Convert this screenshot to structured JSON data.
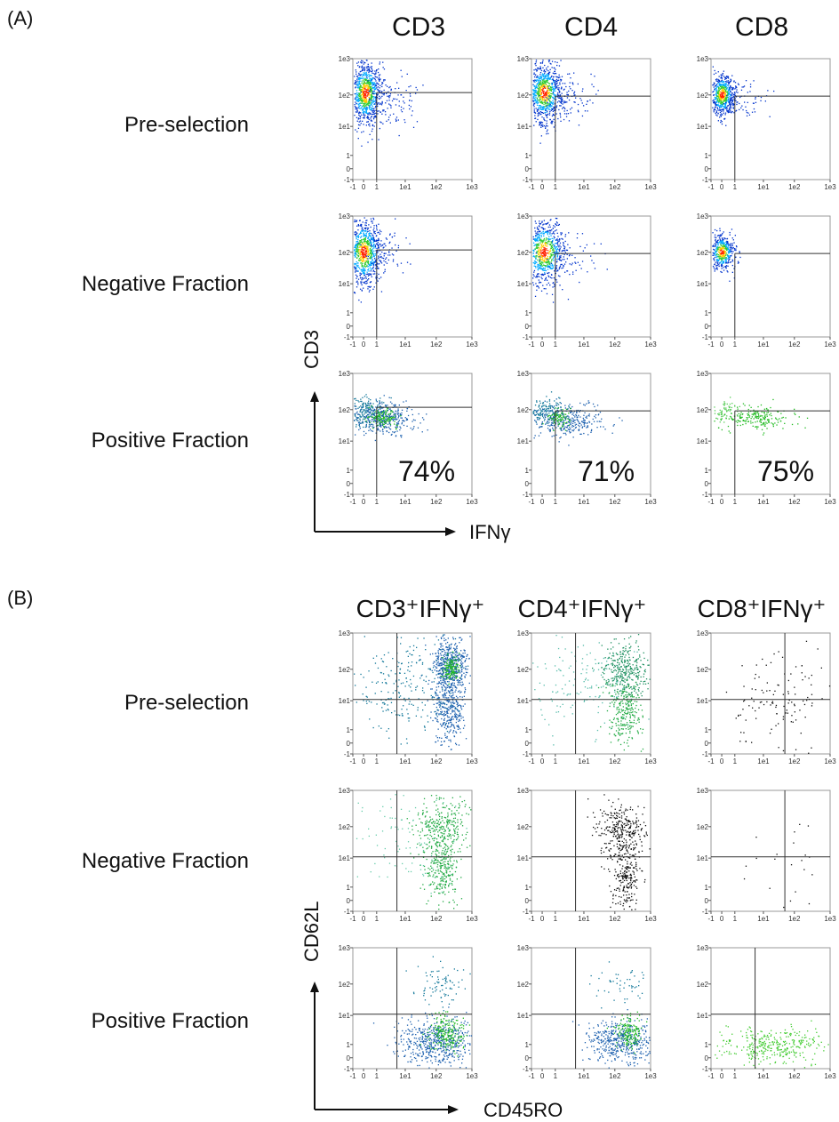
{
  "panels": [
    {
      "label": "(A)",
      "columns": [
        "CD3",
        "CD4",
        "CD8"
      ],
      "rows": [
        "Pre-selection",
        "Negative Fraction",
        "Positive Fraction"
      ],
      "y_axis_label": "CD3",
      "x_axis_label": "IFNγ",
      "tick_labels": [
        "-1",
        "0",
        "1",
        "1e1",
        "1e2",
        "1e3"
      ],
      "percentages": [
        "74%",
        "71%",
        "75%"
      ]
    },
    {
      "label": "(B)",
      "columns": [
        "CD3⁺IFNγ⁺",
        "CD4⁺IFNγ⁺",
        "CD8⁺IFNγ⁺"
      ],
      "rows": [
        "Pre-selection",
        "Negative Fraction",
        "Positive Fraction"
      ],
      "y_axis_label": "CD62L",
      "x_axis_label": "CD45RO",
      "tick_labels": [
        "-1",
        "0",
        "1",
        "1e1",
        "1e2",
        "1e3"
      ]
    }
  ],
  "chart_data": [
    {
      "type": "scatter",
      "panel": "(A)",
      "xlabel": "IFNγ",
      "ylabel": "CD3",
      "xlim": [
        "-1",
        "1e3"
      ],
      "ylim": [
        "-1",
        "1e3"
      ],
      "x_ticks": [
        "-1",
        "0",
        "1",
        "1e1",
        "1e2",
        "1e3"
      ],
      "y_ticks": [
        "-1",
        "0",
        "1",
        "1e1",
        "1e2",
        "1e3"
      ],
      "columns": [
        "CD3",
        "CD4",
        "CD8"
      ],
      "rows": [
        "Pre-selection",
        "Negative Fraction",
        "Positive Fraction"
      ],
      "annotations": [
        {
          "row": "Positive Fraction",
          "column": "CD3",
          "text": "74%"
        },
        {
          "row": "Positive Fraction",
          "column": "CD4",
          "text": "71%"
        },
        {
          "row": "Positive Fraction",
          "column": "CD8",
          "text": "75%"
        }
      ]
    },
    {
      "type": "scatter",
      "panel": "(B)",
      "xlabel": "CD45RO",
      "ylabel": "CD62L",
      "xlim": [
        "-1",
        "1e3"
      ],
      "ylim": [
        "-1",
        "1e3"
      ],
      "x_ticks": [
        "-1",
        "0",
        "1",
        "1e1",
        "1e2",
        "1e3"
      ],
      "y_ticks": [
        "-1",
        "0",
        "1",
        "1e1",
        "1e2",
        "1e3"
      ],
      "columns": [
        "CD3⁺IFNγ⁺",
        "CD4⁺IFNγ⁺",
        "CD8⁺IFNγ⁺"
      ],
      "rows": [
        "Pre-selection",
        "Negative Fraction",
        "Positive Fraction"
      ]
    }
  ],
  "colors": {
    "dense": "#0033cc",
    "core": "#ff2200",
    "green": "#22bb22",
    "black": "#111111"
  }
}
